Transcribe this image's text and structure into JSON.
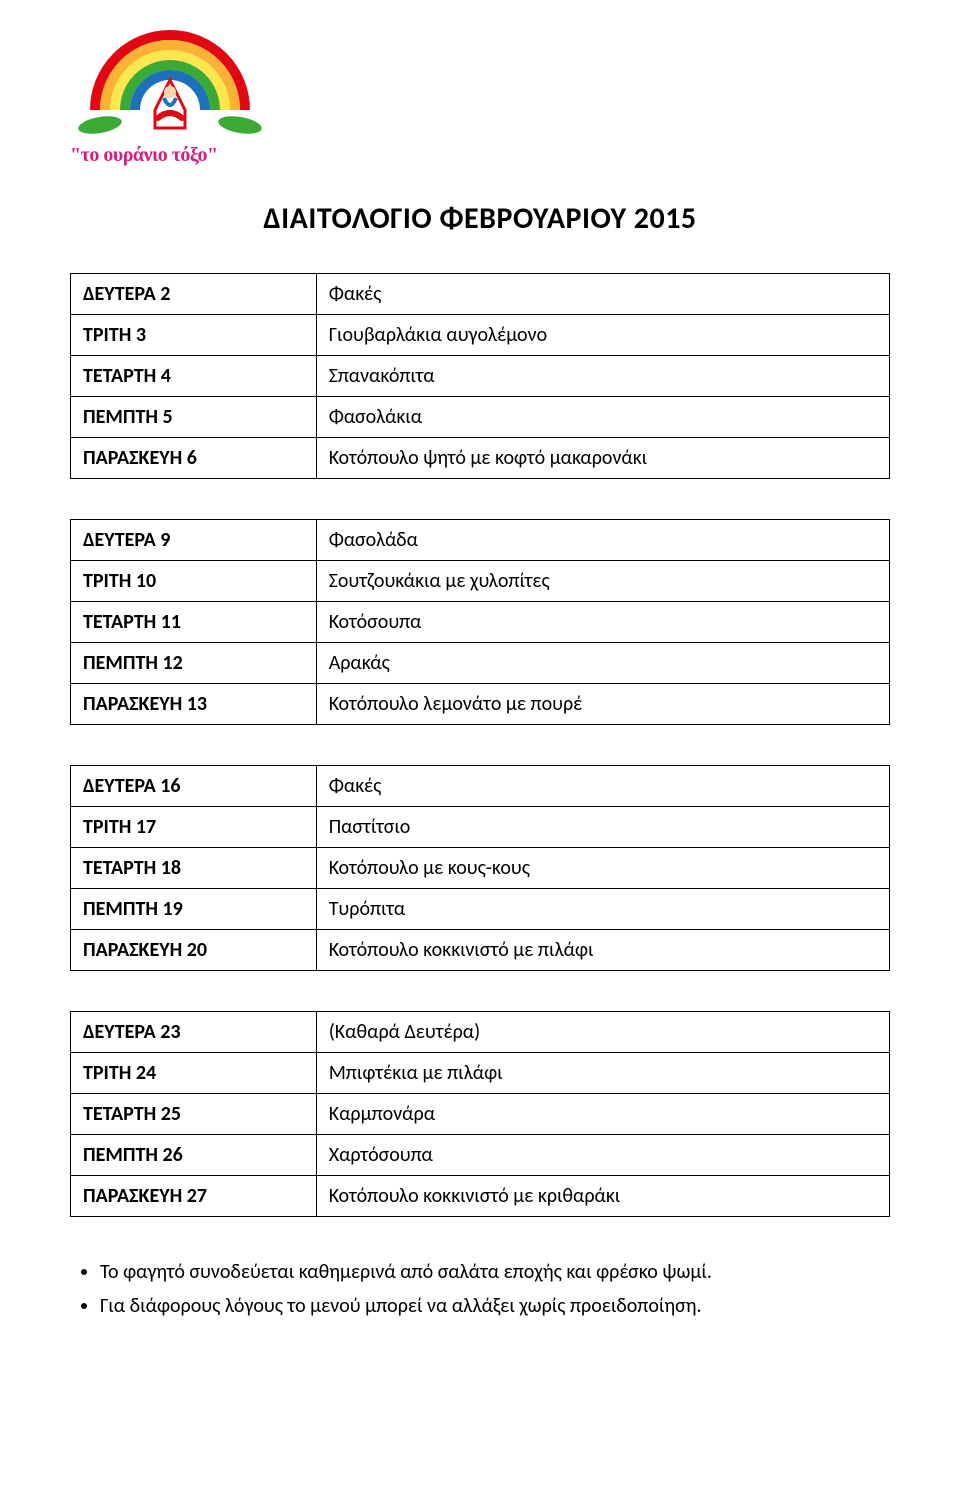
{
  "logo": {
    "text": "\"το ουράνιο τόξο\"",
    "text_color": "#d91b7e",
    "rainbow_colors": [
      "#e30613",
      "#f9b233",
      "#fde74c",
      "#3aaa35",
      "#1d71b8"
    ],
    "leaf_color": "#3aaa35"
  },
  "title": "ΔΙΑΙΤΟΛΟΓΙΟ ΦΕΒΡΟΥΑΡΙΟΥ 2015",
  "weeks": [
    {
      "rows": [
        {
          "day": "ΔΕΥΤΕΡΑ 2",
          "meal": "Φακές"
        },
        {
          "day": "ΤΡΙΤΗ 3",
          "meal": "Γιουβαρλάκια αυγολέμονο"
        },
        {
          "day": "ΤΕΤΑΡΤΗ 4",
          "meal": "Σπανακόπιτα"
        },
        {
          "day": "ΠΕΜΠΤΗ 5",
          "meal": "Φασολάκια"
        },
        {
          "day": "ΠΑΡΑΣΚΕΥΗ 6",
          "meal": "Κοτόπουλο ψητό με κοφτό μακαρονάκι"
        }
      ]
    },
    {
      "rows": [
        {
          "day": "ΔΕΥΤΕΡΑ 9",
          "meal": "Φασολάδα"
        },
        {
          "day": "ΤΡΙΤΗ 10",
          "meal": "Σουτζουκάκια με χυλοπίτες"
        },
        {
          "day": "ΤΕΤΑΡΤΗ 11",
          "meal": "Κοτόσουπα"
        },
        {
          "day": "ΠΕΜΠΤΗ 12",
          "meal": "Αρακάς"
        },
        {
          "day": "ΠΑΡΑΣΚΕΥΗ 13",
          "meal": "Κοτόπουλο λεμονάτο με πουρέ"
        }
      ]
    },
    {
      "rows": [
        {
          "day": "ΔΕΥΤΕΡΑ 16",
          "meal": "Φακές"
        },
        {
          "day": "ΤΡΙΤΗ 17",
          "meal": "Παστίτσιο"
        },
        {
          "day": "ΤΕΤΑΡΤΗ 18",
          "meal": "Κοτόπουλο με κους-κους"
        },
        {
          "day": "ΠΕΜΠΤΗ 19",
          "meal": "Τυρόπιτα"
        },
        {
          "day": "ΠΑΡΑΣΚΕΥΗ 20",
          "meal": "Κοτόπουλο κοκκινιστό με πιλάφι"
        }
      ]
    },
    {
      "rows": [
        {
          "day": "ΔΕΥΤΕΡΑ 23",
          "meal": "(Καθαρά Δευτέρα)"
        },
        {
          "day": "ΤΡΙΤΗ 24",
          "meal": "Μπιφτέκια με πιλάφι"
        },
        {
          "day": "ΤΕΤΑΡΤΗ 25",
          "meal": "Καρμπονάρα"
        },
        {
          "day": "ΠΕΜΠΤΗ 26",
          "meal": "Χαρτόσουπα"
        },
        {
          "day": "ΠΑΡΑΣΚΕΥΗ 27",
          "meal": "Κοτόπουλο κοκκινιστό με κριθαράκι"
        }
      ]
    }
  ],
  "notes": [
    "Το φαγητό συνοδεύεται καθημερινά από σαλάτα εποχής και φρέσκο ψωμί.",
    "Για διάφορους λόγους το μενού μπορεί να αλλάξει χωρίς προειδοποίηση."
  ],
  "styling": {
    "background": "#ffffff",
    "text_color": "#000000",
    "border_color": "#000000",
    "title_fontsize": 30,
    "body_fontsize": 20,
    "day_col_width_pct": 30,
    "meal_col_width_pct": 70,
    "cell_padding": "8px 12px",
    "table_margin_bottom": 40
  }
}
